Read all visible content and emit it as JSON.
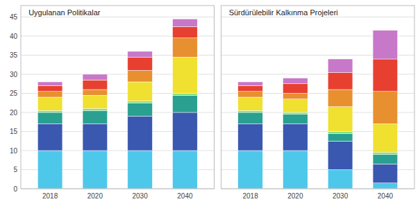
{
  "chart_data": [
    {
      "type": "bar",
      "stacked": true,
      "title": "Uygulanan Politikalar",
      "categories": [
        "2018",
        "2020",
        "2030",
        "2040"
      ],
      "series": [
        {
          "color": "#4dc8ea",
          "values": [
            10.0,
            10.0,
            10.0,
            10.0
          ]
        },
        {
          "color": "#3a58b0",
          "values": [
            7.0,
            7.0,
            9.0,
            10.0
          ]
        },
        {
          "color": "#2aa090",
          "values": [
            3.0,
            3.5,
            3.5,
            4.5
          ]
        },
        {
          "color": "#80e080",
          "values": [
            0.5,
            0.5,
            0.5,
            0.5
          ]
        },
        {
          "color": "#f0e030",
          "values": [
            3.5,
            3.5,
            5.0,
            9.5
          ]
        },
        {
          "color": "#e89030",
          "values": [
            1.5,
            1.5,
            3.0,
            5.0
          ]
        },
        {
          "color": "#e84030",
          "values": [
            1.5,
            2.5,
            3.5,
            3.0
          ]
        },
        {
          "color": "#c878c8",
          "values": [
            1.0,
            1.5,
            1.5,
            2.0
          ]
        }
      ],
      "ylim": [
        0,
        48
      ],
      "yticks": [
        0,
        5,
        10,
        15,
        20,
        25,
        30,
        35,
        40,
        45
      ],
      "grid": true
    },
    {
      "type": "bar",
      "stacked": true,
      "title": "Sürdürülebilir Kalkınma Projeleri",
      "categories": [
        "2018",
        "2020",
        "2030",
        "2040"
      ],
      "series": [
        {
          "color": "#4dc8ea",
          "values": [
            10.0,
            10.0,
            5.0,
            1.5
          ]
        },
        {
          "color": "#3a58b0",
          "values": [
            7.0,
            7.0,
            7.5,
            5.0
          ]
        },
        {
          "color": "#2aa090",
          "values": [
            3.0,
            2.5,
            2.0,
            2.5
          ]
        },
        {
          "color": "#80e080",
          "values": [
            0.5,
            0.5,
            0.5,
            0.5
          ]
        },
        {
          "color": "#f0e030",
          "values": [
            3.5,
            3.5,
            6.5,
            7.5
          ]
        },
        {
          "color": "#e89030",
          "values": [
            1.5,
            1.5,
            4.5,
            8.5
          ]
        },
        {
          "color": "#e84030",
          "values": [
            1.5,
            2.5,
            4.5,
            8.5
          ]
        },
        {
          "color": "#c878c8",
          "values": [
            1.0,
            1.5,
            3.5,
            7.5
          ]
        }
      ],
      "ylim": [
        0,
        48
      ],
      "yticks": [
        0,
        5,
        10,
        15,
        20,
        25,
        30,
        35,
        40,
        45
      ],
      "grid": true,
      "tick_labels": "x"
    }
  ]
}
